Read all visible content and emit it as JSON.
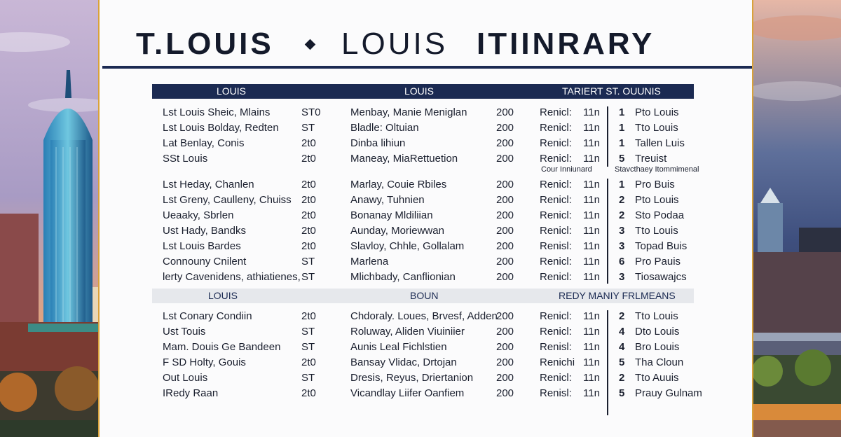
{
  "title": {
    "left": "T.LOUIS",
    "middle": "LOUIS",
    "right": "ITIINRARY"
  },
  "colors": {
    "navy": "#1b2a52",
    "gold_border": "#d9a23a",
    "light_header": "#e6e8ec"
  },
  "section1": {
    "headers": [
      "LOUIS",
      "LOUIS",
      "TARIERT ST. OUUNIS"
    ],
    "rows": [
      [
        "Lst Louis Sheic, Mlains",
        "ST0",
        "Menbay, Manie Meniglan",
        "200",
        "Renicl:",
        "11n",
        "1",
        "Pto Louis"
      ],
      [
        "Lst Louis Bolday, Redten",
        "ST",
        "Bladle: Oltuian",
        "200",
        "Renicl:",
        "11n",
        "1",
        "Tto Louis"
      ],
      [
        "Lat Benlay, Conis",
        "2t0",
        "Dinba lihiun",
        "200",
        "Renicl:",
        "11n",
        "1",
        "Tallen Luis"
      ],
      [
        "SSt Louis",
        "2t0",
        "Maneay, MiaRettuetion",
        "200",
        "Renicl:",
        "11n",
        "5",
        "Treuist"
      ]
    ],
    "sub_labels": [
      "Cour Inniunard",
      "Stavcthaey Itommimenal"
    ]
  },
  "section2": {
    "rows": [
      [
        "Lst Heday, Chanlen",
        "2t0",
        "Marlay, Couie Rbiles",
        "200",
        "Renicl:",
        "11n",
        "1",
        "Pro Buis"
      ],
      [
        "Lst Greny, Caulleny, Chuiss",
        "2t0",
        "Anawy, Tuhnien",
        "200",
        "Renicl:",
        "11n",
        "2",
        "Pto Louis"
      ],
      [
        "Ueaaky, Sbrlen",
        "2t0",
        "Bonanay Mldiliian",
        "200",
        "Renicl:",
        "11n",
        "2",
        "Sto Podaa"
      ],
      [
        "Ust Hady, Bandks",
        "2t0",
        "Aunday, Moriewwan",
        "200",
        "Renicl:",
        "11n",
        "3",
        "Tto Louis"
      ],
      [
        "Lst Louis Bardes",
        "2t0",
        "Slavloy, Chhle, Gollalam",
        "200",
        "Renisl:",
        "11n",
        "3",
        "Topad Buis"
      ],
      [
        "Connouny Cnilent",
        "ST",
        "Marlena",
        "200",
        "Renicl:",
        "11n",
        "6",
        "Pro Pauis"
      ],
      [
        "lerty Cavenidens, athiatienes,",
        "ST",
        "Mlichbady, Canflionian",
        "200",
        "Renicl:",
        "11n",
        "3",
        "Tiosawajcs"
      ]
    ]
  },
  "section3": {
    "headers": [
      "LOUIS",
      "BOUN",
      "REDY MANIY FRLMEANS"
    ],
    "rows": [
      [
        "Lst Conary Condiin",
        "2t0",
        "Chdoraly. Loues, Brvesf, Adden",
        "200",
        "Renicl:",
        "11n",
        "2",
        "Tto Louis"
      ],
      [
        "Ust Touis",
        "ST",
        "Roluway, Aliden Viuiniier",
        "200",
        "Renicl:",
        "11n",
        "4",
        "Dto Louis"
      ],
      [
        "Mam. Douis Ge Bandeen",
        "ST",
        "Aunis Leal Fichlstien",
        "200",
        "Renisl:",
        "11n",
        "4",
        "Bro Louis"
      ],
      [
        "F SD Holty, Gouis",
        "2t0",
        "Bansay Vlidac, Drtojan",
        "200",
        "Renichi",
        "11n",
        "5",
        "Tha Cloun"
      ],
      [
        "Out Louis",
        "ST",
        "Dresis, Reyus, Driertanion",
        "200",
        "Renicl:",
        "11n",
        "2",
        "Tto Auuis"
      ],
      [
        "IRedy Raan",
        "2t0",
        "Vicandlay Liifer Oanfiem",
        "200",
        "Renisl:",
        "11n",
        "5",
        "Prauy Gulnam"
      ]
    ]
  }
}
